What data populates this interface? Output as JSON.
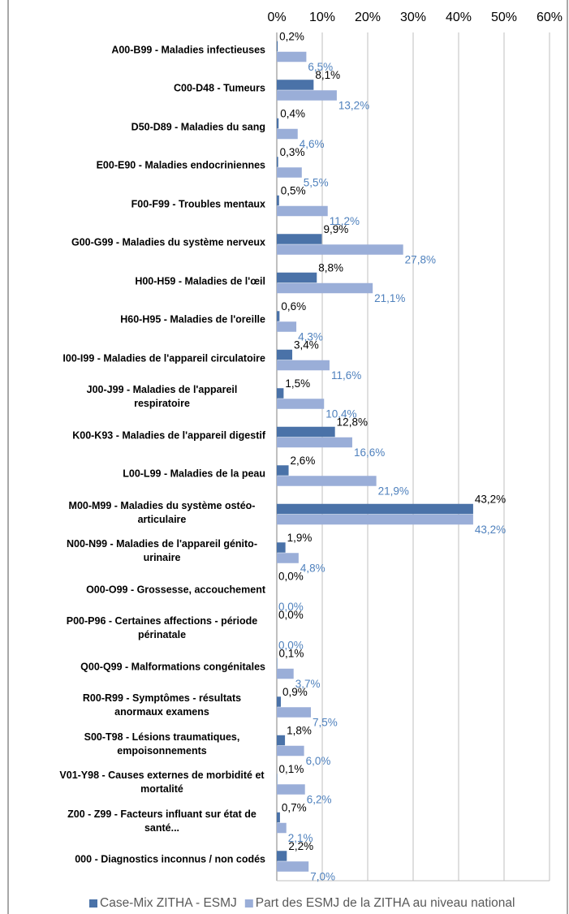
{
  "chart_data": {
    "type": "bar",
    "orientation": "horizontal",
    "categories": [
      "A00-B99 - Maladies infectieuses",
      "C00-D48 - Tumeurs",
      "D50-D89 - Maladies du sang",
      "E00-E90 - Maladies endocriniennes",
      "F00-F99 - Troubles mentaux",
      "G00-G99 - Maladies du système nerveux",
      "H00-H59 - Maladies de l'œil",
      "H60-H95 - Maladies de l'oreille",
      "I00-I99 - Maladies de l'appareil circulatoire",
      "J00-J99 - Maladies de l'appareil respiratoire",
      "K00-K93 - Maladies de l'appareil digestif",
      "L00-L99 - Maladies de la peau",
      "M00-M99 - Maladies du système ostéo-articulaire",
      "N00-N99 - Maladies de l'appareil génito-urinaire",
      "O00-O99 - Grossesse, accouchement",
      "P00-P96 - Certaines affections - période périnatale",
      "Q00-Q99 - Malformations congénitales",
      "R00-R99 - Symptômes - résultats anormaux examens",
      "S00-T98 - Lésions traumatiques, empoisonnements",
      "V01-Y98 - Causes externes de morbidité et mortalité",
      "Z00 - Z99 - Facteurs influant sur état de santé...",
      "000 - Diagnostics inconnus / non codés"
    ],
    "series": [
      {
        "name": "Case-Mix ZITHA - ESMJ",
        "color": "#4a72a8",
        "label_color": "#000000",
        "values": [
          0.2,
          8.1,
          0.4,
          0.3,
          0.5,
          9.9,
          8.8,
          0.6,
          3.4,
          1.5,
          12.8,
          2.6,
          43.2,
          1.9,
          0.0,
          0.0,
          0.1,
          0.9,
          1.8,
          0.1,
          0.7,
          2.2
        ],
        "value_labels": [
          "0,2%",
          "8,1%",
          "0,4%",
          "0,3%",
          "0,5%",
          "9,9%",
          "8,8%",
          "0,6%",
          "3,4%",
          "1,5%",
          "12,8%",
          "2,6%",
          "43,2%",
          "1,9%",
          "0,0%",
          "0,0%",
          "0,1%",
          "0,9%",
          "1,8%",
          "0,1%",
          "0,7%",
          "2,2%"
        ]
      },
      {
        "name": "Part des ESMJ de la ZITHA au niveau national",
        "color": "#9aaed8",
        "label_color": "#4f81bd",
        "values": [
          6.5,
          13.2,
          4.6,
          5.5,
          11.2,
          27.8,
          21.1,
          4.3,
          11.6,
          10.4,
          16.6,
          21.9,
          43.2,
          4.8,
          0.0,
          0.0,
          3.7,
          7.5,
          6.0,
          6.2,
          2.1,
          7.0
        ],
        "value_labels": [
          "6,5%",
          "13,2%",
          "4,6%",
          "5,5%",
          "11,2%",
          "27,8%",
          "21,1%",
          "4,3%",
          "11,6%",
          "10,4%",
          "16,6%",
          "21,9%",
          "43,2%",
          "4,8%",
          "0,0%",
          "0,0%",
          "3,7%",
          "7,5%",
          "6,0%",
          "6,2%",
          "2,1%",
          "7,0%"
        ]
      }
    ],
    "xlim": [
      0,
      60
    ],
    "xticks": [
      {
        "value": 0,
        "label": "0%"
      },
      {
        "value": 10,
        "label": "10%"
      },
      {
        "value": 20,
        "label": "20%"
      },
      {
        "value": 30,
        "label": "30%"
      },
      {
        "value": 40,
        "label": "40%"
      },
      {
        "value": 50,
        "label": "50%"
      },
      {
        "value": 60,
        "label": "60%"
      }
    ],
    "grid": true,
    "legend": "bottom"
  }
}
